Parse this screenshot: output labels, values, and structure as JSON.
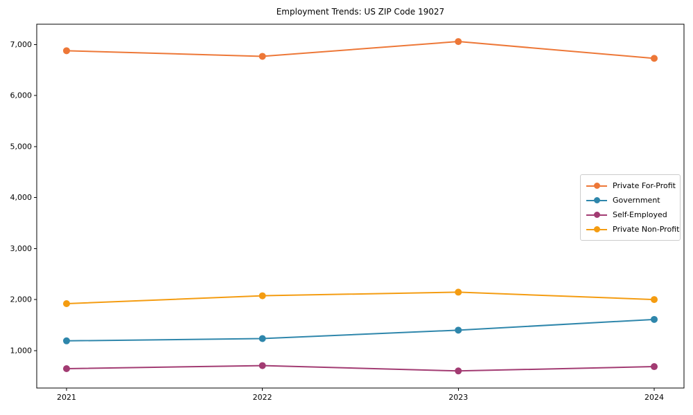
{
  "figure": {
    "background": "#ffffff",
    "plot_border_color": "#000000",
    "tick_color": "#000000",
    "tick_label_color": "#000000"
  },
  "chart_data": {
    "type": "line",
    "title": "Employment Trends: US ZIP Code 19027",
    "xlabel": "",
    "ylabel": "",
    "categories": [
      "2021",
      "2022",
      "2023",
      "2024"
    ],
    "series": [
      {
        "name": "Private For-Profit",
        "color": "#ED7737",
        "values": [
          6880,
          6770,
          7060,
          6730
        ]
      },
      {
        "name": "Government",
        "color": "#2E86AB",
        "values": [
          1190,
          1235,
          1400,
          1610
        ]
      },
      {
        "name": "Self-Employed",
        "color": "#A23B72",
        "values": [
          645,
          705,
          600,
          685
        ]
      },
      {
        "name": "Private Non-Profit",
        "color": "#F49C11",
        "values": [
          1920,
          2075,
          2145,
          2000
        ]
      }
    ],
    "ylim": [
      265,
      7400
    ],
    "yticks": [
      1000,
      2000,
      3000,
      4000,
      5000,
      6000,
      7000
    ],
    "ytick_labels": [
      "1,000",
      "2,000",
      "3,000",
      "4,000",
      "5,000",
      "6,000",
      "7,000"
    ],
    "grid": false,
    "legend_position": "center right",
    "marker": "circle",
    "line_width": 2,
    "marker_radius": 5
  }
}
